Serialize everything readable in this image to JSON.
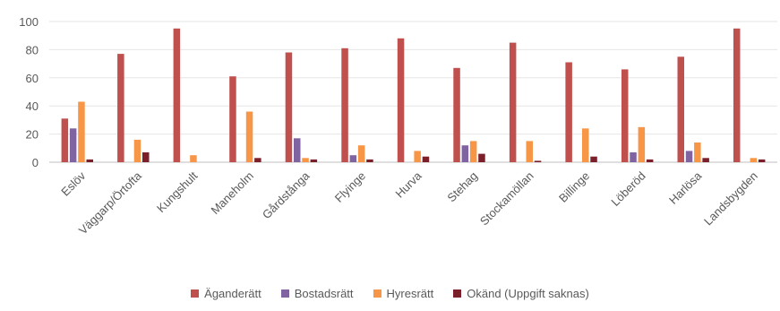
{
  "chart_data": {
    "type": "bar",
    "categories": [
      "Eslöv",
      "Väggarp/Örtofta",
      "Kungshult",
      "Maneholm",
      "Gårdstånga",
      "Flyinge",
      "Hurva",
      "Stehag",
      "Stockamöllan",
      "Billinge",
      "Löberöd",
      "Harlösa",
      "Landsbygden"
    ],
    "series": [
      {
        "name": "Äganderätt",
        "color": "#c0504d",
        "values": [
          31,
          77,
          95,
          61,
          78,
          81,
          88,
          67,
          85,
          71,
          66,
          75,
          95
        ]
      },
      {
        "name": "Bostadsrätt",
        "color": "#8064a2",
        "values": [
          24,
          0,
          0,
          0,
          17,
          5,
          0,
          12,
          0,
          0,
          7,
          8,
          0
        ]
      },
      {
        "name": "Hyresrätt",
        "color": "#f79646",
        "values": [
          43,
          16,
          5,
          36,
          3,
          12,
          8,
          15,
          15,
          24,
          25,
          14,
          3
        ]
      },
      {
        "name": "Okänd (Uppgift saknas)",
        "color": "#7b1f2b",
        "values": [
          2,
          7,
          0,
          3,
          2,
          2,
          4,
          6,
          1,
          4,
          2,
          3,
          2
        ]
      }
    ],
    "yticks": [
      0,
      20,
      40,
      60,
      80,
      100
    ],
    "ylim": [
      0,
      100
    ],
    "grid": true,
    "legend_position": "bottom"
  }
}
